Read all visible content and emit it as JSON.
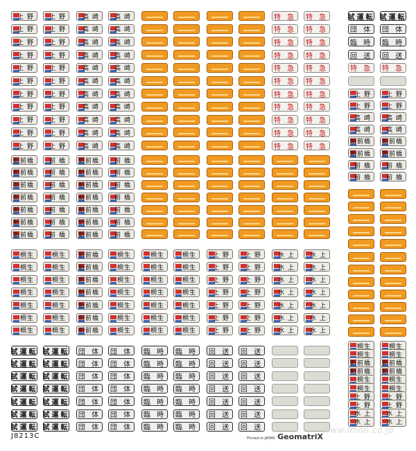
{
  "labels": {
    "ueno": "上 野",
    "takasaki": "高 崎",
    "shinmaebashi": "新前橋",
    "maebashi": "前 橋",
    "shimizu": "水 上",
    "kiryu": "桐生",
    "tokkyu": "特 急",
    "shiunten": "試運転",
    "dantai": "団 体",
    "rinji": "臨 時",
    "kaisou": "回 送"
  },
  "colors": {
    "route_plate": "#ecebe6",
    "orange_plate": "#f09a22",
    "express_text": "#c41818",
    "blank_plate": "#dcdcd4"
  },
  "footer": {
    "code": "J8213C",
    "printed": "Printed in JAPAN",
    "brand": "GeomatriX",
    "watermark": "www.imon.co.jp"
  }
}
